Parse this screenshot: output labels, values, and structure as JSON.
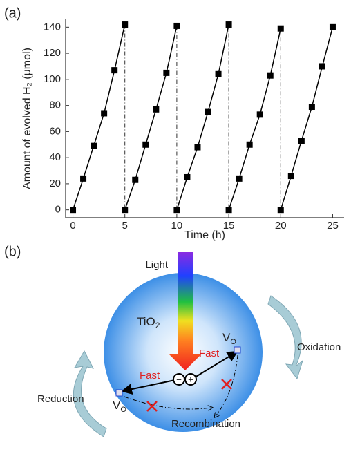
{
  "panels": [
    "(a)",
    "(b)"
  ],
  "chart_data": {
    "type": "line",
    "xlabel": "Time (h)",
    "ylabel": "Amount of evolved H₂ (μmol)",
    "series": [
      {
        "color": "#000000",
        "x": [
          0,
          1,
          2,
          3,
          4,
          5
        ],
        "values": [
          0,
          24,
          49,
          74,
          107,
          142
        ]
      },
      {
        "color": "#000000",
        "x": [
          5,
          6,
          7,
          8,
          9,
          10
        ],
        "values": [
          0,
          23,
          50,
          77,
          105,
          141
        ]
      },
      {
        "color": "#000000",
        "x": [
          10,
          11,
          12,
          13,
          14,
          15
        ],
        "values": [
          0,
          25,
          48,
          75,
          104,
          142
        ]
      },
      {
        "color": "#000000",
        "x": [
          15,
          16,
          17,
          18,
          19,
          20
        ],
        "values": [
          0,
          24,
          50,
          73,
          103,
          139
        ]
      },
      {
        "color": "#000000",
        "x": [
          20,
          21,
          22,
          23,
          24,
          25
        ],
        "values": [
          0,
          26,
          53,
          79,
          110,
          140
        ]
      }
    ],
    "xlim": [
      -0.7,
      26.1
    ],
    "xticks": [
      0,
      5,
      10,
      15,
      20,
      25
    ],
    "ylim": [
      -6,
      146
    ],
    "yticks": [
      0,
      20,
      40,
      60,
      80,
      100,
      120,
      140
    ]
  },
  "diagram": {
    "light": "Light",
    "material": "TiO",
    "material_sub": "2",
    "fast": [
      "Fast",
      "Fast"
    ],
    "vacancy": "V",
    "vacancy_sub": "O",
    "charges": [
      "−",
      "+"
    ],
    "oxidation": "Oxidation",
    "reduction": "Reduction",
    "recombination": "Recombination"
  }
}
